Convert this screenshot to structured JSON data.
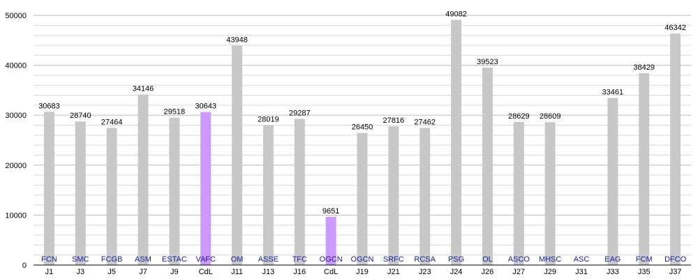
{
  "chart_data": {
    "type": "bar",
    "title": "",
    "xlabel": "",
    "ylabel": "",
    "ylim": [
      0,
      50000
    ],
    "yticks": [
      "0",
      "10000",
      "20000",
      "30000",
      "40000",
      "50000"
    ],
    "grid": "horizontal, dense minor lines",
    "categories": [
      "J1",
      "J3",
      "J5",
      "J7",
      "J9",
      "CdL",
      "J11",
      "J13",
      "J16",
      "CdL",
      "J19",
      "J21",
      "J23",
      "J24",
      "J26",
      "J27",
      "J29",
      "J31",
      "J33",
      "J35",
      "J37"
    ],
    "teams": [
      "FCN",
      "SMC",
      "FCGB",
      "ASM",
      "ESTAC",
      "VAFC",
      "OM",
      "ASSE",
      "TFC",
      "OGCN",
      "OGCN",
      "SRFC",
      "RCSA",
      "PSG",
      "OL",
      "ASCO",
      "MHSC",
      "ASC",
      "EAG",
      "FCM",
      "DFCO"
    ],
    "values": [
      30683,
      28740,
      27464,
      34146,
      29518,
      30643,
      43948,
      28019,
      29287,
      9651,
      26450,
      27816,
      27462,
      49082,
      39523,
      28629,
      28609,
      null,
      33461,
      38429,
      46342
    ],
    "labels": [
      "30683",
      "28740",
      "27464",
      "34146",
      "29518",
      "30643",
      "43948",
      "28019",
      "29287",
      "9651",
      "26450",
      "27816",
      "27462",
      "49082",
      "39523",
      "28629",
      "28609",
      "",
      "33461",
      "38429",
      "46342"
    ],
    "highlight_indices": [
      5,
      9
    ],
    "colors": {
      "bar": "#c8c8c8",
      "highlight": "#cc99ff",
      "team_label": "#1a1aa6",
      "grid": "#d9d9d9"
    }
  }
}
